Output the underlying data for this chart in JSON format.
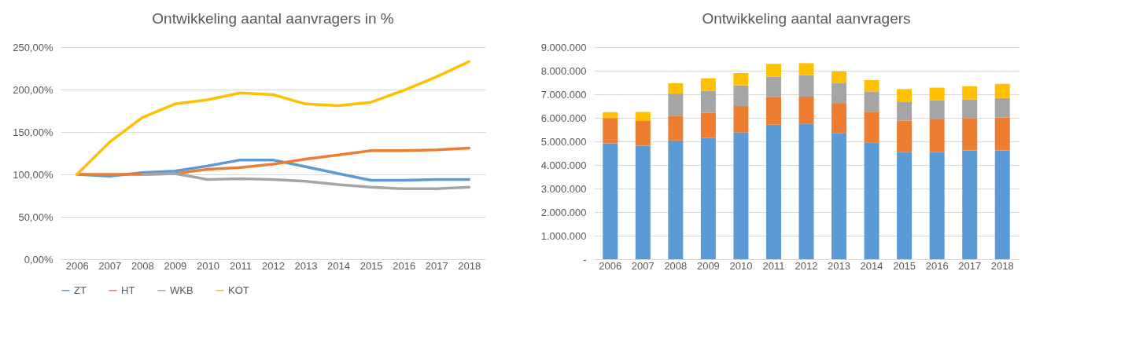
{
  "chart_data": [
    {
      "type": "line",
      "title": "Ontwikkeling aantal aanvragers in %",
      "categories": [
        "2006",
        "2007",
        "2008",
        "2009",
        "2010",
        "2011",
        "2012",
        "2013",
        "2014",
        "2015",
        "2016",
        "2017",
        "2018"
      ],
      "series": [
        {
          "name": "ZT",
          "color": "#5b9bd5",
          "values": [
            100,
            98,
            102,
            104,
            110,
            117,
            117,
            109,
            101,
            93,
            93,
            94,
            94
          ]
        },
        {
          "name": "HT",
          "color": "#ed7d31",
          "values": [
            100,
            100,
            100,
            101,
            106,
            108,
            112,
            118,
            123,
            128,
            128,
            129,
            131
          ]
        },
        {
          "name": "WKB",
          "color": "#a5a5a5",
          "values": [
            null,
            null,
            100,
            101,
            94,
            95,
            94,
            92,
            88,
            85,
            83,
            83,
            85
          ]
        },
        {
          "name": "KOT",
          "color": "#ffc000",
          "values": [
            100,
            138,
            167,
            183,
            188,
            196,
            194,
            183,
            181,
            185,
            199,
            215,
            233
          ]
        }
      ],
      "ylim": [
        0,
        250
      ],
      "yticks": [
        {
          "value": 0,
          "label": "0,00%"
        },
        {
          "value": 50,
          "label": "50,00%"
        },
        {
          "value": 100,
          "label": "100,00%"
        },
        {
          "value": 150,
          "label": "150,00%"
        },
        {
          "value": 200,
          "label": "200,00%"
        },
        {
          "value": 250,
          "label": "250,00%"
        }
      ],
      "grid": "y",
      "legend": "bottom",
      "marker": "none",
      "line_style": "solid"
    },
    {
      "type": "bar",
      "title": "Ontwikkeling aantal aanvragers",
      "stacked": true,
      "categories": [
        "2006",
        "2007",
        "2008",
        "2009",
        "2010",
        "2011",
        "2012",
        "2013",
        "2014",
        "2015",
        "2016",
        "2017",
        "2018"
      ],
      "series": [
        {
          "name": "ZT",
          "color": "#5b9bd5",
          "values": [
            4920000,
            4820000,
            5040000,
            5150000,
            5380000,
            5710000,
            5740000,
            5340000,
            4960000,
            4560000,
            4560000,
            4620000,
            4620000
          ]
        },
        {
          "name": "HT",
          "color": "#ed7d31",
          "values": [
            1070000,
            1070000,
            1050000,
            1060000,
            1120000,
            1160000,
            1160000,
            1260000,
            1300000,
            1320000,
            1400000,
            1370000,
            1390000
          ]
        },
        {
          "name": "WKB",
          "color": "#a5a5a5",
          "values": [
            null,
            null,
            940000,
            940000,
            880000,
            870000,
            910000,
            890000,
            860000,
            810000,
            780000,
            790000,
            830000
          ]
        },
        {
          "name": "KOT",
          "color": "#ffc000",
          "values": [
            250000,
            360000,
            440000,
            530000,
            520000,
            550000,
            510000,
            480000,
            480000,
            530000,
            540000,
            560000,
            600000
          ]
        }
      ],
      "ylim": [
        0,
        9000000
      ],
      "yticks": [
        {
          "value": 0,
          "label": "-"
        },
        {
          "value": 1000000,
          "label": "1.000.000"
        },
        {
          "value": 2000000,
          "label": "2.000.000"
        },
        {
          "value": 3000000,
          "label": "3.000.000"
        },
        {
          "value": 4000000,
          "label": "4.000.000"
        },
        {
          "value": 5000000,
          "label": "5.000.000"
        },
        {
          "value": 6000000,
          "label": "6.000.000"
        },
        {
          "value": 7000000,
          "label": "7.000.000"
        },
        {
          "value": 8000000,
          "label": "8.000.000"
        },
        {
          "value": 9000000,
          "label": "9.000.000"
        }
      ],
      "grid": "y",
      "legend": "bottom"
    }
  ]
}
